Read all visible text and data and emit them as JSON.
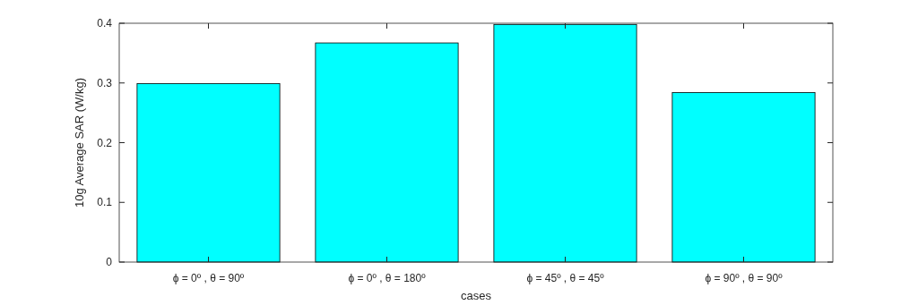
{
  "chart_data": {
    "type": "bar",
    "xlabel": "cases",
    "ylabel": "10g Average SAR (W/kg)",
    "categories": [
      "ϕ = 0º , θ = 90º",
      "ϕ = 0º , θ = 180º",
      "ϕ = 45º , θ = 45º",
      "ϕ = 90º , θ = 90º"
    ],
    "values": [
      0.299,
      0.367,
      0.398,
      0.284
    ],
    "color": "#00ffff",
    "ylim": [
      0,
      0.4
    ],
    "yticks": [
      0,
      0.1,
      0.2,
      0.3,
      0.4
    ],
    "grid": false
  }
}
